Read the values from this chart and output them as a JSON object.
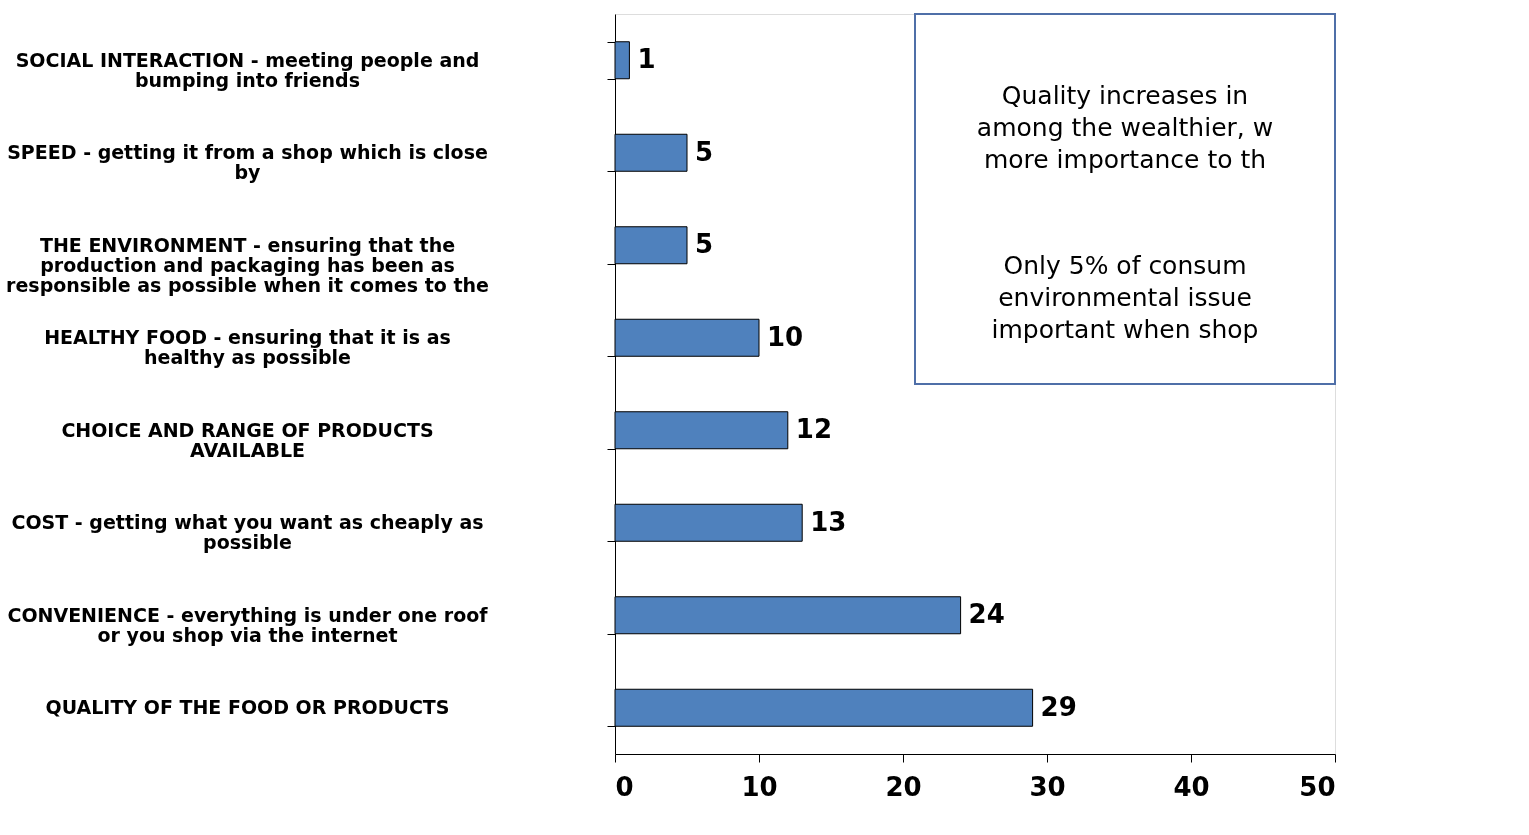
{
  "chart_data": {
    "type": "bar",
    "orientation": "horizontal",
    "categories": [
      "SOCIAL INTERACTION - meeting people and\nbumping into friends",
      "SPEED - getting it from a shop which is close\nby",
      "THE ENVIRONMENT - ensuring that the\nproduction and packaging has been as\nresponsible as possible when it comes to the",
      "HEALTHY FOOD - ensuring that it is as\nhealthy as possible",
      "CHOICE AND RANGE OF PRODUCTS\nAVAILABLE",
      "COST - getting what you want as cheaply as\npossible",
      "CONVENIENCE - everything is under one roof\nor you shop via the internet",
      "QUALITY OF THE FOOD OR PRODUCTS"
    ],
    "values": [
      1,
      5,
      5,
      10,
      12,
      13,
      24,
      29
    ],
    "color": "#4f81bd",
    "data_labels": true,
    "xlim": [
      0,
      50
    ],
    "xticks": [
      0,
      10,
      20,
      30,
      40,
      50
    ],
    "grid": false,
    "annotations": [
      "Quality increases in\namong the wealthier, w\nmore importance to th",
      "Only 5% of consum\nenvironmental issue\nimportant when shop"
    ]
  }
}
